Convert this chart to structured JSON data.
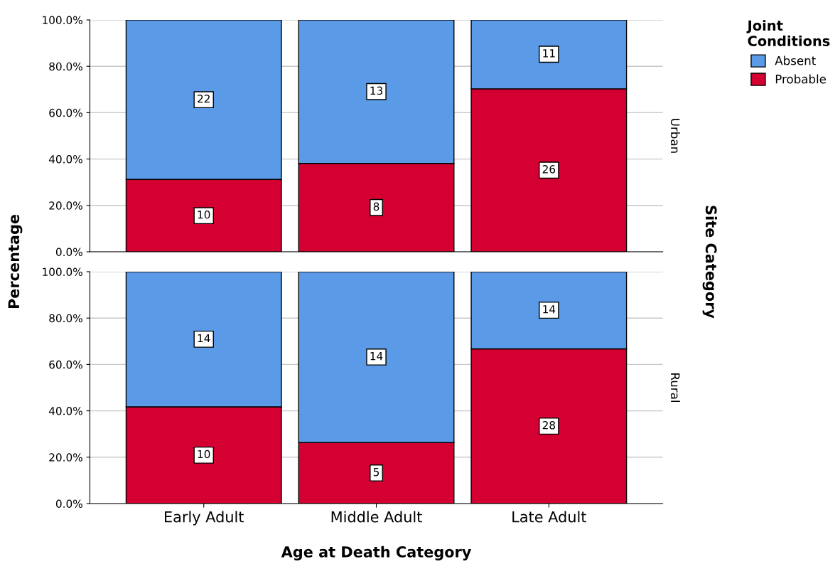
{
  "chart_data": [
    {
      "type": "bar",
      "stacked": true,
      "ylabel": "Percentage",
      "y2label": "Site Category",
      "legend_title": "Joint Conditions",
      "legend": "top right",
      "grid": "y",
      "tick_labels": "y",
      "categories": [
        "Early Adult",
        "Middle Adult",
        "Late Adult"
      ],
      "ylim": [
        0,
        100
      ],
      "yticks": [
        {
          "value": 0,
          "label": "0.0%"
        },
        {
          "value": 20,
          "label": "20.0%"
        },
        {
          "value": 40,
          "label": "40.0%"
        },
        {
          "value": 60,
          "label": "60.0%"
        },
        {
          "value": 80,
          "label": "80.0%"
        },
        {
          "value": 100,
          "label": "100.0%"
        }
      ],
      "series": [
        {
          "name": "Probable",
          "color": "#d50032",
          "values": [
            31.2,
            38.1,
            70.3
          ]
        },
        {
          "name": "Absent",
          "color": "#5a9ae6",
          "values": [
            68.8,
            61.9,
            29.7
          ]
        }
      ],
      "annotations": [
        "Urban",
        {
          "text": "10",
          "x": "Early Adult",
          "y": 15.6
        },
        {
          "text": "8",
          "x": "Middle Adult",
          "y": 19.1
        },
        {
          "text": "26",
          "x": "Late Adult",
          "y": 35.2
        },
        {
          "text": "22",
          "x": "Early Adult",
          "y": 65.6
        },
        {
          "text": "13",
          "x": "Middle Adult",
          "y": 69.1
        },
        {
          "text": "11",
          "x": "Late Adult",
          "y": 85.2
        }
      ]
    },
    {
      "type": "bar",
      "stacked": true,
      "xlabel": "Age at Death Category",
      "grid": "y",
      "categories": [
        "Early Adult",
        "Middle Adult",
        "Late Adult"
      ],
      "ylim": [
        0,
        100
      ],
      "yticks": [
        {
          "value": 0,
          "label": "0.0%"
        },
        {
          "value": 20,
          "label": "20.0%"
        },
        {
          "value": 40,
          "label": "40.0%"
        },
        {
          "value": 60,
          "label": "60.0%"
        },
        {
          "value": 80,
          "label": "80.0%"
        },
        {
          "value": 100,
          "label": "100.0%"
        }
      ],
      "series": [
        {
          "color": "#d50032",
          "values": [
            41.7,
            26.3,
            66.7
          ]
        },
        {
          "color": "#5a9ae6",
          "values": [
            58.3,
            73.7,
            33.3
          ]
        }
      ],
      "annotations": [
        "Rural",
        {
          "text": "10",
          "x": "Early Adult",
          "y": 20.9
        },
        {
          "text": "5",
          "x": "Middle Adult",
          "y": 13.2
        },
        {
          "text": "28",
          "x": "Late Adult",
          "y": 33.4
        },
        {
          "text": "14",
          "x": "Early Adult",
          "y": 70.9
        },
        {
          "text": "14",
          "x": "Middle Adult",
          "y": 63.2
        },
        {
          "text": "14",
          "x": "Late Adult",
          "y": 83.4
        }
      ]
    }
  ]
}
